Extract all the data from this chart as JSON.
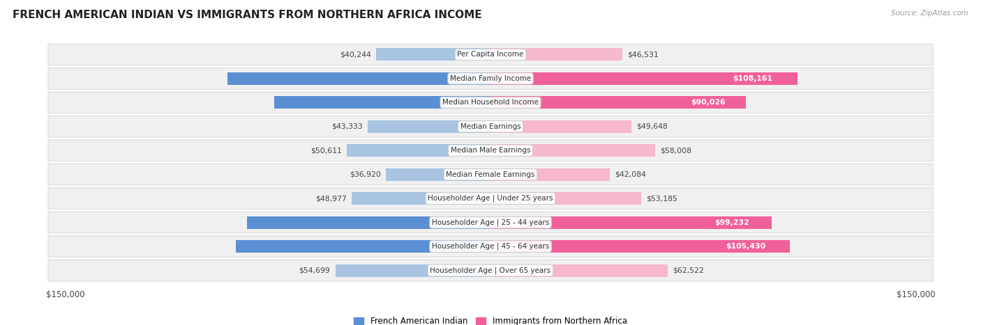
{
  "title": "FRENCH AMERICAN INDIAN VS IMMIGRANTS FROM NORTHERN AFRICA INCOME",
  "source": "Source: ZipAtlas.com",
  "categories": [
    "Per Capita Income",
    "Median Family Income",
    "Median Household Income",
    "Median Earnings",
    "Median Male Earnings",
    "Median Female Earnings",
    "Householder Age | Under 25 years",
    "Householder Age | 25 - 44 years",
    "Householder Age | 45 - 64 years",
    "Householder Age | Over 65 years"
  ],
  "left_values": [
    40244,
    92872,
    76387,
    43333,
    50611,
    36920,
    48977,
    85899,
    89811,
    54699
  ],
  "right_values": [
    46531,
    108161,
    90026,
    49648,
    58008,
    42084,
    53185,
    99232,
    105430,
    62522
  ],
  "left_color_normal": "#a8c4e0",
  "left_color_highlight": "#5b8fd4",
  "right_color_normal": "#f5b8cc",
  "right_color_highlight": "#f0609a",
  "background_color": "#ffffff",
  "row_bg_color": "#f0f0f0",
  "row_border_color": "#d8d8d8",
  "max_value": 150000,
  "left_label": "French American Indian",
  "right_label": "Immigrants from Northern Africa",
  "highlight_indices": [
    1,
    2,
    7,
    8
  ]
}
